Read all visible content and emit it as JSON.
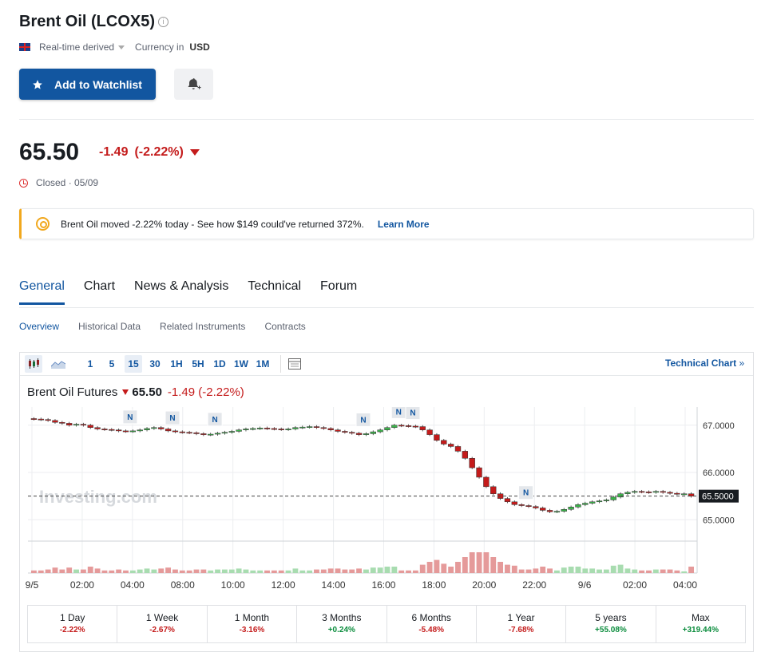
{
  "header": {
    "title": "Brent Oil (LCOX5)",
    "data_source": "Real-time derived",
    "currency_label": "Currency in",
    "currency": "USD",
    "watchlist_button": "Add to Watchlist"
  },
  "quote": {
    "price": "65.50",
    "change": "-1.49",
    "change_pct": "(-2.22%)",
    "status": "Closed · 05/09"
  },
  "promo": {
    "text": "Brent Oil moved -2.22% today - See how $149 could've returned 372%.",
    "link": "Learn More"
  },
  "tabs": [
    "General",
    "Chart",
    "News & Analysis",
    "Technical",
    "Forum"
  ],
  "active_tab": "General",
  "subtabs": [
    "Overview",
    "Historical Data",
    "Related Instruments",
    "Contracts"
  ],
  "chart_toolbar": {
    "intervals": [
      "1",
      "5",
      "15",
      "30",
      "1H",
      "5H",
      "1D",
      "1W",
      "1M"
    ],
    "selected_interval": "15",
    "technical_chart_link": "Technical Chart"
  },
  "chart_header": {
    "name": "Brent Oil Futures",
    "price": "65.50",
    "change": "-1.49 (-2.22%)"
  },
  "chart_data": {
    "type": "candlestick",
    "watermark": "Investing.com",
    "y_ticks": [
      "67.0000",
      "66.0000",
      "65.0000"
    ],
    "last_price_label": "65.5000",
    "x_ticks": [
      "9/5",
      "02:00",
      "04:00",
      "08:00",
      "10:00",
      "12:00",
      "14:00",
      "16:00",
      "18:00",
      "20:00",
      "22:00",
      "9/6",
      "02:00",
      "04:00"
    ],
    "ylim": [
      64.6,
      67.3
    ],
    "close_series": [
      67.13,
      67.12,
      67.1,
      67.06,
      67.04,
      67.0,
      67.02,
      67.0,
      66.95,
      66.92,
      66.91,
      66.9,
      66.88,
      66.87,
      66.88,
      66.9,
      66.93,
      66.95,
      66.92,
      66.88,
      66.86,
      66.85,
      66.84,
      66.82,
      66.8,
      66.81,
      66.83,
      66.85,
      66.87,
      66.9,
      66.92,
      66.93,
      66.94,
      66.93,
      66.92,
      66.91,
      66.92,
      66.95,
      66.96,
      66.97,
      66.95,
      66.93,
      66.9,
      66.87,
      66.85,
      66.83,
      66.8,
      66.82,
      66.86,
      66.9,
      66.95,
      67.0,
      66.99,
      66.98,
      66.97,
      66.9,
      66.8,
      66.68,
      66.6,
      66.55,
      66.45,
      66.3,
      66.1,
      65.9,
      65.7,
      65.55,
      65.45,
      65.38,
      65.32,
      65.3,
      65.28,
      65.25,
      65.2,
      65.17,
      65.18,
      65.22,
      65.27,
      65.32,
      65.35,
      65.38,
      65.4,
      65.42,
      65.48,
      65.55,
      65.58,
      65.6,
      65.59,
      65.58,
      65.6,
      65.58,
      65.56,
      65.55,
      65.55,
      65.5
    ],
    "news_markers": [
      "N",
      "N",
      "N",
      "N",
      "N",
      "N",
      "N"
    ],
    "volume_spike_time": "20:00"
  },
  "performance": [
    {
      "label": "1 Day",
      "value": "-2.22%",
      "dir": "neg"
    },
    {
      "label": "1 Week",
      "value": "-2.67%",
      "dir": "neg"
    },
    {
      "label": "1 Month",
      "value": "-3.16%",
      "dir": "neg"
    },
    {
      "label": "3 Months",
      "value": "+0.24%",
      "dir": "pos"
    },
    {
      "label": "6 Months",
      "value": "-5.48%",
      "dir": "neg"
    },
    {
      "label": "1 Year",
      "value": "-7.68%",
      "dir": "neg"
    },
    {
      "label": "5 years",
      "value": "+55.08%",
      "dir": "pos"
    },
    {
      "label": "Max",
      "value": "+319.44%",
      "dir": "pos"
    }
  ]
}
